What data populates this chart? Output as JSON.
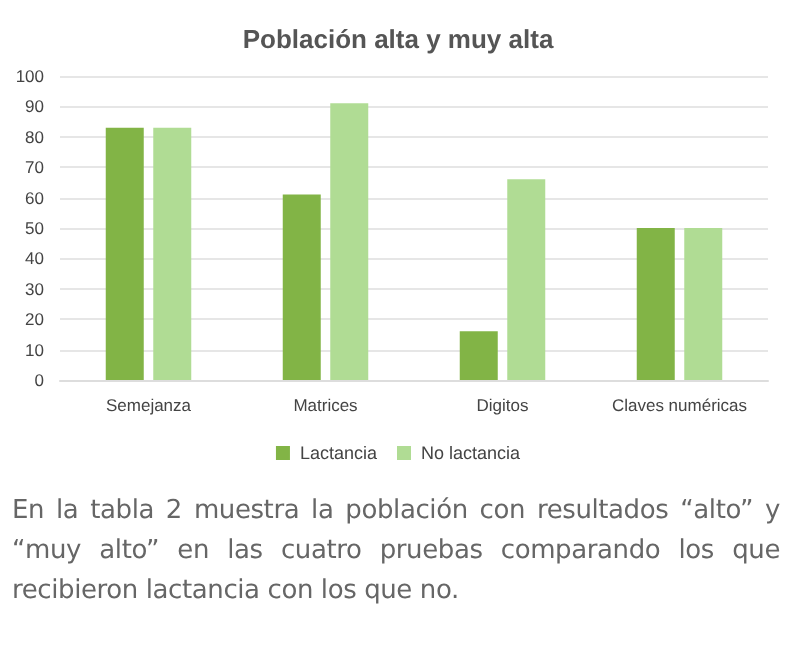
{
  "chart_data": {
    "type": "bar",
    "title": "Población alta y muy alta",
    "categories": [
      "Semejanza",
      "Matrices",
      "Digitos",
      "Claves numéricas"
    ],
    "series": [
      {
        "name": "Lactancia",
        "color": "#82b446",
        "values": [
          83,
          61,
          16,
          50
        ]
      },
      {
        "name": "No lactancia",
        "color": "#b0dc94",
        "values": [
          83,
          91,
          66,
          50
        ]
      }
    ],
    "ylim": [
      0,
      100
    ],
    "yticks": [
      0,
      10,
      20,
      30,
      40,
      50,
      60,
      70,
      80,
      90,
      100
    ],
    "grid": "y",
    "legend": "bottom",
    "annotations": [
      "En la tabla 2 muestra la población con resultados “alto” y “muy alto” en las cuatro pruebas comparando los que recibieron lactancia con los que no."
    ]
  }
}
